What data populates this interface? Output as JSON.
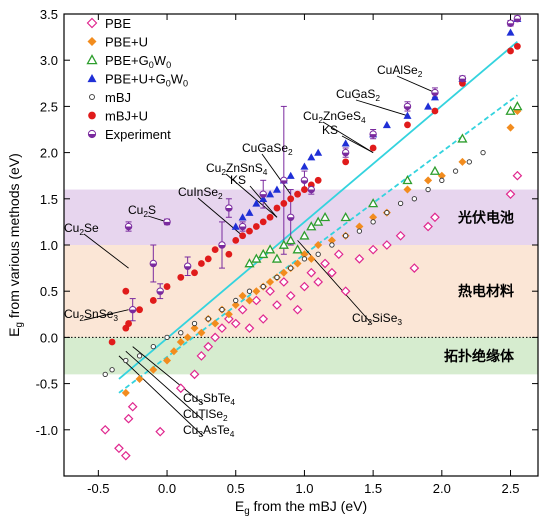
{
  "chart_data": {
    "type": "scatter",
    "xlabel": "E_g from the mBJ (eV)",
    "ylabel": "E_g from various methods (eV)",
    "xlabel_parts": [
      "E",
      "g",
      " from the mBJ (eV)"
    ],
    "ylabel_parts": [
      "E",
      "g",
      " from various methods (eV)"
    ],
    "xlim": [
      -0.75,
      2.7
    ],
    "ylim": [
      -1.5,
      3.5
    ],
    "x_ticks": [
      -0.5,
      0,
      0.5,
      1,
      1.5,
      2,
      2.5
    ],
    "x_tick_labels": [
      "-0.5",
      "0.0",
      "0.5",
      "1.0",
      "1.5",
      "2.0",
      "2.5"
    ],
    "y_ticks": [
      -1.0,
      -0.5,
      0.0,
      0.5,
      1.0,
      1.5,
      2.0,
      2.5,
      3.0,
      3.5
    ],
    "y_tick_labels": [
      "-1.0",
      "-0.5",
      "0.0",
      "0.5",
      "1.0",
      "1.5",
      "2.0",
      "2.5",
      "3.0",
      "3.5"
    ],
    "legend_position": "top-left",
    "bands": [
      {
        "label": "光伏电池",
        "y_range": [
          1.0,
          1.6
        ],
        "color": "#e7d5ee"
      },
      {
        "label": "热电材料",
        "y_range": [
          0.0,
          1.0
        ],
        "color": "#fbe6d6"
      },
      {
        "label": "拓扑绝缘体",
        "y_range": [
          -0.4,
          0.0
        ],
        "color": "#d6eccf"
      }
    ],
    "fit_lines": [
      {
        "style": "solid",
        "color": "#34d3de",
        "x": [
          -0.35,
          2.55
        ],
        "y": [
          -0.45,
          3.2
        ]
      },
      {
        "style": "dashed",
        "color": "#34d3de",
        "x": [
          -0.35,
          2.55
        ],
        "y": [
          -0.6,
          2.62
        ]
      }
    ],
    "series": [
      {
        "name": "PBE",
        "marker": "diamond-open",
        "color": "#e0288f",
        "x": [
          -0.45,
          -0.35,
          -0.3,
          -0.28,
          -0.25,
          -0.05,
          0.1,
          0.2,
          0.25,
          0.3,
          0.35,
          0.4,
          0.45,
          0.5,
          0.55,
          0.6,
          0.65,
          0.7,
          0.75,
          0.8,
          0.85,
          0.9,
          0.95,
          1.0,
          1.05,
          1.1,
          1.15,
          1.2,
          1.25,
          1.3,
          1.4,
          1.5,
          1.6,
          1.7,
          1.8,
          1.9,
          1.95,
          2.5,
          2.55
        ],
        "y": [
          -1.0,
          -1.2,
          -1.28,
          -0.88,
          -0.75,
          -1.02,
          -0.55,
          -0.4,
          -0.2,
          -0.1,
          0.0,
          0.1,
          0.2,
          0.15,
          0.3,
          0.1,
          0.4,
          0.2,
          0.5,
          0.35,
          0.6,
          0.45,
          0.3,
          0.55,
          0.7,
          0.6,
          0.8,
          0.7,
          0.9,
          0.5,
          0.85,
          0.95,
          1.0,
          1.1,
          0.75,
          1.2,
          1.3,
          1.55,
          1.75
        ]
      },
      {
        "name": "PBE+U",
        "marker": "diamond",
        "color": "#f28c1e",
        "x": [
          -0.3,
          -0.2,
          -0.1,
          0.0,
          0.05,
          0.1,
          0.15,
          0.2,
          0.25,
          0.3,
          0.35,
          0.4,
          0.45,
          0.5,
          0.55,
          0.6,
          0.65,
          0.7,
          0.75,
          0.8,
          0.85,
          0.9,
          0.95,
          1.0,
          1.05,
          1.1,
          1.2,
          1.3,
          1.4,
          1.5,
          1.6,
          1.75,
          1.9,
          2.0,
          2.15,
          2.5,
          2.55
        ],
        "y": [
          -0.6,
          -0.45,
          -0.35,
          -0.25,
          -0.15,
          -0.05,
          0.0,
          0.1,
          0.05,
          0.2,
          0.15,
          0.3,
          0.25,
          0.35,
          0.45,
          0.4,
          0.5,
          0.55,
          0.6,
          0.65,
          0.7,
          0.75,
          0.8,
          0.9,
          0.85,
          1.0,
          1.05,
          1.1,
          1.2,
          1.3,
          1.35,
          1.6,
          1.7,
          1.75,
          1.9,
          2.27,
          2.45
        ]
      },
      {
        "name": "PBE+G0W0",
        "marker": "triangle-open",
        "color": "#2e9e2e",
        "x": [
          0.6,
          0.65,
          0.7,
          0.75,
          0.8,
          0.85,
          0.9,
          0.95,
          1.0,
          1.05,
          1.1,
          1.15,
          1.3,
          1.5,
          1.75,
          1.95,
          2.15,
          2.5,
          2.55
        ],
        "y": [
          0.8,
          0.85,
          0.9,
          0.95,
          0.85,
          1.0,
          1.05,
          0.95,
          1.1,
          1.2,
          1.25,
          1.3,
          1.3,
          1.45,
          1.7,
          1.8,
          2.15,
          2.45,
          2.5
        ]
      },
      {
        "name": "PBE+U+G0W0",
        "marker": "triangle",
        "color": "#1f2fd6",
        "x": [
          0.5,
          0.55,
          0.6,
          0.65,
          0.7,
          0.75,
          0.8,
          0.85,
          0.9,
          1.0,
          1.05,
          1.1,
          1.3,
          1.5,
          1.6,
          1.75,
          1.9,
          1.95,
          2.15,
          2.5,
          2.55
        ],
        "y": [
          1.2,
          1.3,
          1.35,
          1.45,
          1.5,
          1.55,
          1.6,
          1.7,
          1.75,
          1.85,
          1.95,
          2.0,
          2.1,
          2.2,
          2.3,
          2.4,
          2.5,
          2.6,
          2.8,
          3.3,
          3.45
        ]
      },
      {
        "name": "mBJ",
        "marker": "circle-open-small",
        "color": "#333333",
        "x": [
          -0.45,
          -0.4,
          -0.3,
          -0.2,
          -0.1,
          0.0,
          0.1,
          0.2,
          0.3,
          0.4,
          0.5,
          0.6,
          0.7,
          0.8,
          0.9,
          1.0,
          1.1,
          1.2,
          1.3,
          1.4,
          1.5,
          1.6,
          1.7,
          1.8,
          1.9,
          2.0,
          2.1,
          2.2,
          2.3
        ],
        "y": [
          -0.4,
          -0.35,
          -0.25,
          -0.2,
          -0.1,
          0.0,
          0.05,
          0.15,
          0.2,
          0.3,
          0.4,
          0.5,
          0.55,
          0.65,
          0.75,
          0.85,
          0.9,
          1.0,
          1.1,
          1.15,
          1.25,
          1.35,
          1.45,
          1.5,
          1.6,
          1.7,
          1.8,
          1.9,
          2.0
        ]
      },
      {
        "name": "mBJ+U",
        "marker": "circle",
        "color": "#e01b1b",
        "x": [
          -0.4,
          -0.3,
          -0.3,
          -0.28,
          -0.2,
          -0.1,
          0.0,
          0.1,
          0.2,
          0.25,
          0.3,
          0.35,
          0.4,
          0.45,
          0.5,
          0.55,
          0.6,
          0.65,
          0.7,
          0.75,
          0.8,
          0.85,
          0.9,
          0.95,
          1.0,
          1.05,
          1.1,
          1.3,
          1.5,
          1.75,
          1.95,
          2.15,
          2.5,
          2.55
        ],
        "y": [
          -0.05,
          0.1,
          0.5,
          0.15,
          0.3,
          0.4,
          0.55,
          0.65,
          0.7,
          0.8,
          0.85,
          0.95,
          1.0,
          0.9,
          1.05,
          1.1,
          1.15,
          1.2,
          1.25,
          1.3,
          1.4,
          1.45,
          1.5,
          1.55,
          1.6,
          1.65,
          1.7,
          1.9,
          2.05,
          2.3,
          2.45,
          2.75,
          3.1,
          3.15
        ]
      },
      {
        "name": "Experiment",
        "marker": "circle-half",
        "color": "#7a2a9e",
        "x": [
          -0.28,
          -0.25,
          -0.1,
          -0.05,
          0.0,
          0.15,
          0.4,
          0.45,
          0.55,
          0.7,
          0.85,
          0.9,
          1.0,
          1.05,
          1.3,
          1.5,
          1.75,
          1.95,
          2.15,
          2.5,
          2.55
        ],
        "y": [
          1.2,
          0.3,
          0.8,
          0.5,
          1.25,
          0.77,
          1.0,
          1.4,
          1.2,
          1.55,
          1.7,
          1.3,
          1.7,
          1.6,
          2.0,
          2.2,
          2.5,
          2.65,
          2.8,
          3.4,
          3.45
        ],
        "err": [
          0.05,
          0.12,
          0.2,
          0.08,
          0.03,
          0.1,
          0.25,
          0.1,
          0.05,
          0.15,
          0.8,
          0.3,
          0.1,
          0.05,
          0.05,
          0.05,
          0.05,
          0.05,
          0.03,
          0.03,
          0.03
        ]
      }
    ],
    "annotations": [
      {
        "parts": [
          "Cu",
          "2",
          "Se"
        ],
        "point": [
          -0.28,
          0.75
        ]
      },
      {
        "parts": [
          "Cu",
          "2",
          "S"
        ],
        "point": [
          0.0,
          1.25
        ]
      },
      {
        "parts": [
          "Cu",
          "2",
          "SnSe",
          "3"
        ],
        "point": [
          -0.28,
          0.3
        ]
      },
      {
        "parts": [
          "CuInSe",
          "2"
        ],
        "point": [
          0.55,
          1.1
        ]
      },
      {
        "parts": [
          "Cu",
          "2",
          "ZnSnS",
          "4"
        ],
        "point": [
          0.8,
          1.3
        ]
      },
      {
        "parts": [
          "KS"
        ],
        "point": [
          0.8,
          1.3
        ]
      },
      {
        "parts": [
          "CuGaSe",
          "2"
        ],
        "point": [
          0.9,
          1.55
        ]
      },
      {
        "parts": [
          "Cu",
          "2",
          "ZnGeS",
          "4"
        ],
        "point": [
          1.5,
          2.0
        ]
      },
      {
        "parts": [
          "KS"
        ],
        "point": [
          1.5,
          2.0
        ]
      },
      {
        "parts": [
          "CuGaS",
          "2"
        ],
        "point": [
          1.75,
          2.4
        ]
      },
      {
        "parts": [
          "CuAlSe",
          "2"
        ],
        "point": [
          1.95,
          2.65
        ]
      },
      {
        "parts": [
          "Cu",
          "2",
          "SiSe",
          "3"
        ],
        "point": [
          0.95,
          1.05
        ]
      },
      {
        "parts": [
          "Cu",
          "3",
          "SbTe",
          "4"
        ],
        "point": [
          -0.25,
          -0.1
        ]
      },
      {
        "parts": [
          "CuTlSe",
          "2"
        ],
        "point": [
          -0.3,
          -0.15
        ]
      },
      {
        "parts": [
          "Cu",
          "3",
          "AsTe",
          "4"
        ],
        "point": [
          -0.35,
          -0.2
        ]
      }
    ],
    "legend": [
      {
        "parts": [
          "PBE"
        ]
      },
      {
        "parts": [
          "PBE+U"
        ]
      },
      {
        "parts": [
          "PBE+G",
          "0",
          "W",
          "0"
        ]
      },
      {
        "parts": [
          "PBE+U+G",
          "0",
          "W",
          "0"
        ]
      },
      {
        "parts": [
          "mBJ"
        ]
      },
      {
        "parts": [
          "mBJ+U"
        ]
      },
      {
        "parts": [
          "Experiment"
        ]
      }
    ]
  }
}
